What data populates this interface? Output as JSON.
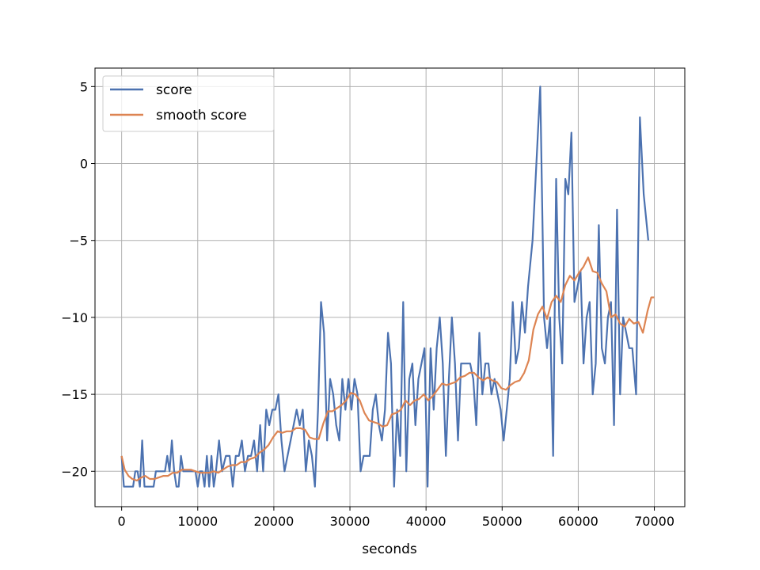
{
  "chart_data": {
    "type": "line",
    "title": "",
    "xlabel": "seconds",
    "ylabel": "",
    "xlim": [
      -3500,
      74000
    ],
    "ylim": [
      -22.3,
      6.2
    ],
    "xticks": [
      0,
      10000,
      20000,
      30000,
      40000,
      50000,
      60000,
      70000
    ],
    "xtick_labels": [
      "0",
      "10000",
      "20000",
      "30000",
      "40000",
      "50000",
      "60000",
      "70000"
    ],
    "yticks": [
      5,
      0,
      -5,
      -10,
      -15,
      -20
    ],
    "ytick_labels": [
      "5",
      "0",
      "−5",
      "−10",
      "−15",
      "−20"
    ],
    "grid": true,
    "legend_position": "top-left",
    "colors": {
      "score": "#4c72b0",
      "smooth": "#dd8452"
    },
    "series": [
      {
        "name": "score",
        "points": [
          [
            0,
            -19
          ],
          [
            300,
            -21
          ],
          [
            700,
            -21
          ],
          [
            1100,
            -21
          ],
          [
            1500,
            -21
          ],
          [
            1800,
            -20
          ],
          [
            2100,
            -20
          ],
          [
            2400,
            -21
          ],
          [
            2700,
            -18
          ],
          [
            3000,
            -21
          ],
          [
            3400,
            -21
          ],
          [
            3800,
            -21
          ],
          [
            4200,
            -21
          ],
          [
            4500,
            -20
          ],
          [
            4900,
            -20
          ],
          [
            5300,
            -20
          ],
          [
            5700,
            -20
          ],
          [
            6000,
            -19
          ],
          [
            6300,
            -20
          ],
          [
            6600,
            -18
          ],
          [
            6900,
            -20
          ],
          [
            7200,
            -21
          ],
          [
            7500,
            -21
          ],
          [
            7800,
            -19
          ],
          [
            8100,
            -20
          ],
          [
            8500,
            -20
          ],
          [
            8900,
            -20
          ],
          [
            9300,
            -20
          ],
          [
            9700,
            -20
          ],
          [
            10000,
            -21
          ],
          [
            10300,
            -20
          ],
          [
            10600,
            -20
          ],
          [
            10900,
            -21
          ],
          [
            11200,
            -19
          ],
          [
            11500,
            -21
          ],
          [
            11800,
            -19
          ],
          [
            12100,
            -21
          ],
          [
            12400,
            -20
          ],
          [
            12800,
            -18
          ],
          [
            13200,
            -20
          ],
          [
            13700,
            -19
          ],
          [
            14200,
            -19
          ],
          [
            14600,
            -21
          ],
          [
            15000,
            -19
          ],
          [
            15400,
            -19
          ],
          [
            15800,
            -18
          ],
          [
            16200,
            -20
          ],
          [
            16600,
            -19
          ],
          [
            17000,
            -19
          ],
          [
            17400,
            -18
          ],
          [
            17800,
            -20
          ],
          [
            18200,
            -17
          ],
          [
            18600,
            -20
          ],
          [
            19000,
            -16
          ],
          [
            19400,
            -17
          ],
          [
            19800,
            -16
          ],
          [
            20200,
            -16
          ],
          [
            20600,
            -15
          ],
          [
            21000,
            -18
          ],
          [
            21400,
            -20
          ],
          [
            21800,
            -19
          ],
          [
            22200,
            -18
          ],
          [
            22600,
            -17
          ],
          [
            23000,
            -16
          ],
          [
            23400,
            -17
          ],
          [
            23800,
            -16
          ],
          [
            24200,
            -20
          ],
          [
            24600,
            -18
          ],
          [
            25000,
            -19
          ],
          [
            25400,
            -21
          ],
          [
            25800,
            -16
          ],
          [
            26200,
            -9
          ],
          [
            26600,
            -11
          ],
          [
            27000,
            -18
          ],
          [
            27400,
            -14
          ],
          [
            27800,
            -15
          ],
          [
            28200,
            -17
          ],
          [
            28600,
            -18
          ],
          [
            29000,
            -14
          ],
          [
            29400,
            -16
          ],
          [
            29800,
            -14
          ],
          [
            30200,
            -16
          ],
          [
            30600,
            -14
          ],
          [
            31000,
            -15
          ],
          [
            31400,
            -20
          ],
          [
            31800,
            -19
          ],
          [
            32200,
            -19
          ],
          [
            32600,
            -19
          ],
          [
            33000,
            -16
          ],
          [
            33400,
            -15
          ],
          [
            33800,
            -17
          ],
          [
            34200,
            -18
          ],
          [
            34600,
            -16
          ],
          [
            35000,
            -11
          ],
          [
            35400,
            -13
          ],
          [
            35800,
            -21
          ],
          [
            36200,
            -16
          ],
          [
            36600,
            -19
          ],
          [
            37000,
            -9
          ],
          [
            37400,
            -20
          ],
          [
            37800,
            -14
          ],
          [
            38200,
            -13
          ],
          [
            38600,
            -17
          ],
          [
            39000,
            -14
          ],
          [
            39400,
            -13
          ],
          [
            39800,
            -12
          ],
          [
            40200,
            -21
          ],
          [
            40600,
            -12
          ],
          [
            41000,
            -16
          ],
          [
            41400,
            -12
          ],
          [
            41800,
            -10
          ],
          [
            42200,
            -13
          ],
          [
            42600,
            -19
          ],
          [
            43000,
            -14
          ],
          [
            43400,
            -10
          ],
          [
            43800,
            -13
          ],
          [
            44200,
            -18
          ],
          [
            44600,
            -13
          ],
          [
            45000,
            -13
          ],
          [
            45400,
            -13
          ],
          [
            45800,
            -13
          ],
          [
            46200,
            -14
          ],
          [
            46600,
            -17
          ],
          [
            47000,
            -11
          ],
          [
            47400,
            -15
          ],
          [
            47800,
            -13
          ],
          [
            48200,
            -13
          ],
          [
            48600,
            -15
          ],
          [
            49000,
            -14
          ],
          [
            49400,
            -15
          ],
          [
            49800,
            -16
          ],
          [
            50200,
            -18
          ],
          [
            50600,
            -16
          ],
          [
            51000,
            -14
          ],
          [
            51400,
            -9
          ],
          [
            51800,
            -13
          ],
          [
            52200,
            -12
          ],
          [
            52600,
            -9
          ],
          [
            53000,
            -11
          ],
          [
            53400,
            -8
          ],
          [
            54000,
            -5
          ],
          [
            55000,
            5
          ],
          [
            55500,
            -10
          ],
          [
            55900,
            -12
          ],
          [
            56300,
            -10
          ],
          [
            56700,
            -19
          ],
          [
            57100,
            -1
          ],
          [
            57500,
            -10
          ],
          [
            57900,
            -13
          ],
          [
            58300,
            -1
          ],
          [
            58700,
            -2
          ],
          [
            59100,
            2
          ],
          [
            59500,
            -9
          ],
          [
            59900,
            -8
          ],
          [
            60300,
            -7
          ],
          [
            60700,
            -13
          ],
          [
            61100,
            -10
          ],
          [
            61500,
            -9
          ],
          [
            61900,
            -15
          ],
          [
            62300,
            -13
          ],
          [
            62700,
            -4
          ],
          [
            63100,
            -12
          ],
          [
            63500,
            -13
          ],
          [
            63900,
            -10
          ],
          [
            64300,
            -9
          ],
          [
            64700,
            -17
          ],
          [
            65100,
            -3
          ],
          [
            65500,
            -15
          ],
          [
            65900,
            -10
          ],
          [
            66300,
            -11
          ],
          [
            66700,
            -12
          ],
          [
            67100,
            -12
          ],
          [
            67600,
            -15
          ],
          [
            68100,
            3
          ],
          [
            68600,
            -2
          ],
          [
            69200,
            -5
          ]
        ]
      },
      {
        "name": "smooth score",
        "points": [
          [
            0,
            -19
          ],
          [
            400,
            -19.9
          ],
          [
            900,
            -20.3
          ],
          [
            1400,
            -20.5
          ],
          [
            2000,
            -20.6
          ],
          [
            2600,
            -20.4
          ],
          [
            3100,
            -20.3
          ],
          [
            3700,
            -20.5
          ],
          [
            4300,
            -20.5
          ],
          [
            4900,
            -20.4
          ],
          [
            5500,
            -20.3
          ],
          [
            6100,
            -20.3
          ],
          [
            6700,
            -20.1
          ],
          [
            7300,
            -20.1
          ],
          [
            7900,
            -19.9
          ],
          [
            8500,
            -19.9
          ],
          [
            9100,
            -19.9
          ],
          [
            9700,
            -20
          ],
          [
            10300,
            -20.1
          ],
          [
            10900,
            -20.1
          ],
          [
            11500,
            -20.1
          ],
          [
            12100,
            -20
          ],
          [
            12700,
            -20.1
          ],
          [
            13300,
            -19.9
          ],
          [
            13900,
            -19.7
          ],
          [
            14500,
            -19.6
          ],
          [
            15100,
            -19.6
          ],
          [
            15700,
            -19.4
          ],
          [
            16300,
            -19.4
          ],
          [
            16900,
            -19.2
          ],
          [
            17500,
            -19.1
          ],
          [
            18100,
            -18.8
          ],
          [
            18700,
            -18.6
          ],
          [
            19300,
            -18.3
          ],
          [
            19900,
            -17.8
          ],
          [
            20500,
            -17.4
          ],
          [
            21100,
            -17.5
          ],
          [
            21700,
            -17.4
          ],
          [
            22300,
            -17.4
          ],
          [
            22900,
            -17.2
          ],
          [
            23500,
            -17.2
          ],
          [
            24100,
            -17.3
          ],
          [
            24700,
            -17.8
          ],
          [
            25300,
            -17.9
          ],
          [
            25900,
            -17.9
          ],
          [
            26500,
            -16.9
          ],
          [
            27100,
            -16.1
          ],
          [
            27700,
            -16.1
          ],
          [
            28300,
            -15.9
          ],
          [
            28900,
            -15.7
          ],
          [
            29500,
            -15.4
          ],
          [
            30100,
            -14.9
          ],
          [
            30700,
            -15
          ],
          [
            31300,
            -15.4
          ],
          [
            31900,
            -16.2
          ],
          [
            32500,
            -16.7
          ],
          [
            33100,
            -16.8
          ],
          [
            33700,
            -16.9
          ],
          [
            34300,
            -17.1
          ],
          [
            34900,
            -17
          ],
          [
            35500,
            -16.3
          ],
          [
            36100,
            -16.2
          ],
          [
            36700,
            -16
          ],
          [
            37300,
            -15.4
          ],
          [
            37900,
            -15.7
          ],
          [
            38500,
            -15.4
          ],
          [
            39100,
            -15.3
          ],
          [
            39700,
            -15
          ],
          [
            40300,
            -15.4
          ],
          [
            40900,
            -15.1
          ],
          [
            41500,
            -14.7
          ],
          [
            42100,
            -14.3
          ],
          [
            42700,
            -14.4
          ],
          [
            43300,
            -14.3
          ],
          [
            43900,
            -14.2
          ],
          [
            44500,
            -13.9
          ],
          [
            45100,
            -13.8
          ],
          [
            45700,
            -13.6
          ],
          [
            46300,
            -13.6
          ],
          [
            46900,
            -13.9
          ],
          [
            47500,
            -14.1
          ],
          [
            48100,
            -13.9
          ],
          [
            48700,
            -14.1
          ],
          [
            49300,
            -14.2
          ],
          [
            49900,
            -14.6
          ],
          [
            50500,
            -14.7
          ],
          [
            51100,
            -14.4
          ],
          [
            51700,
            -14.2
          ],
          [
            52300,
            -14.1
          ],
          [
            52900,
            -13.6
          ],
          [
            53500,
            -12.8
          ],
          [
            54100,
            -10.8
          ],
          [
            54700,
            -9.8
          ],
          [
            55300,
            -9.3
          ],
          [
            55900,
            -10.1
          ],
          [
            56500,
            -9
          ],
          [
            57100,
            -8.6
          ],
          [
            57700,
            -9
          ],
          [
            58300,
            -7.9
          ],
          [
            58900,
            -7.3
          ],
          [
            59500,
            -7.6
          ],
          [
            60100,
            -7.1
          ],
          [
            60700,
            -6.7
          ],
          [
            61300,
            -6.1
          ],
          [
            61900,
            -7
          ],
          [
            62500,
            -7.1
          ],
          [
            63100,
            -7.8
          ],
          [
            63700,
            -8.3
          ],
          [
            64300,
            -10
          ],
          [
            64900,
            -9.8
          ],
          [
            65500,
            -10.4
          ],
          [
            66100,
            -10.6
          ],
          [
            66700,
            -10.1
          ],
          [
            67300,
            -10.4
          ],
          [
            67900,
            -10.3
          ],
          [
            68500,
            -11
          ],
          [
            69100,
            -9.6
          ],
          [
            69600,
            -8.7
          ],
          [
            70000,
            -8.7
          ]
        ]
      }
    ]
  }
}
